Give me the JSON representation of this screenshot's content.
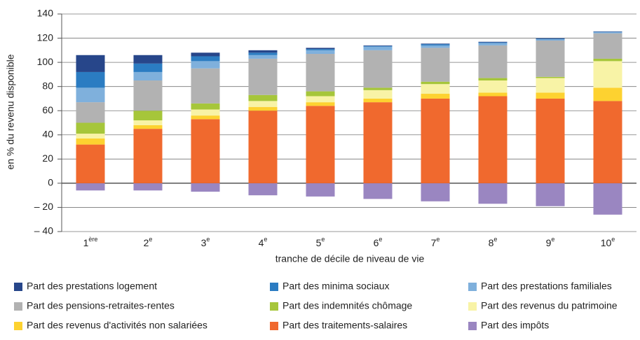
{
  "chart_data": {
    "type": "stacked_bar",
    "y_label": "en % du revenu disponible",
    "x_label": "tranche de décile de niveau de vie",
    "categories": [
      "1",
      "2",
      "3",
      "4",
      "5",
      "6",
      "7",
      "8",
      "9",
      "10"
    ],
    "category_suffixes": [
      "ère",
      "e",
      "e",
      "e",
      "e",
      "e",
      "e",
      "e",
      "e",
      "e"
    ],
    "ylim": [
      -40,
      140
    ],
    "yticks": [
      {
        "value": -40,
        "label": "– 40"
      },
      {
        "value": -20,
        "label": "– 20"
      },
      0,
      20,
      40,
      60,
      80,
      100,
      120,
      140
    ],
    "grid": true,
    "series": [
      {
        "name": "Part des prestations logement",
        "color": "#27468a",
        "values": [
          14,
          7,
          3,
          2,
          1,
          0.5,
          0.5,
          0.5,
          0.5,
          0.3
        ]
      },
      {
        "name": "Part des minima sociaux",
        "color": "#2b7cc2",
        "values": [
          13,
          7,
          4,
          2,
          1,
          0.5,
          1,
          0.5,
          0.5,
          0.3
        ]
      },
      {
        "name": "Part des prestations familiales",
        "color": "#7fb0dc",
        "values": [
          12,
          7,
          6,
          3,
          3,
          3,
          2,
          2,
          1,
          1
        ]
      },
      {
        "name": "Part des pensions-retraites-rentes",
        "color": "#b2b2b2",
        "values": [
          17,
          25,
          29,
          30,
          31,
          31,
          28,
          27,
          30,
          21
        ]
      },
      {
        "name": "Part des indemnités chômage",
        "color": "#a6c63a",
        "values": [
          9,
          8,
          5,
          5,
          4,
          2,
          2,
          2,
          1,
          2
        ]
      },
      {
        "name": "Part des revenus du patrimoine",
        "color": "#f8f3a6",
        "values": [
          4,
          4,
          5,
          5,
          5,
          7,
          8,
          10,
          12,
          22
        ]
      },
      {
        "name": "Part des revenus d'activités non salariées",
        "color": "#fdd230",
        "values": [
          5,
          3,
          3,
          3,
          3,
          3,
          4,
          3,
          5,
          11
        ]
      },
      {
        "name": "Part des traitements-salaires",
        "color": "#f0692e",
        "values": [
          32,
          45,
          53,
          60,
          64,
          67,
          70,
          72,
          70,
          68
        ]
      },
      {
        "name": "Part des impôts",
        "color": "#9a86c1",
        "values": [
          -6,
          -6,
          -7,
          -10,
          -11,
          -13,
          -15,
          -17,
          -19,
          -26
        ]
      }
    ]
  }
}
